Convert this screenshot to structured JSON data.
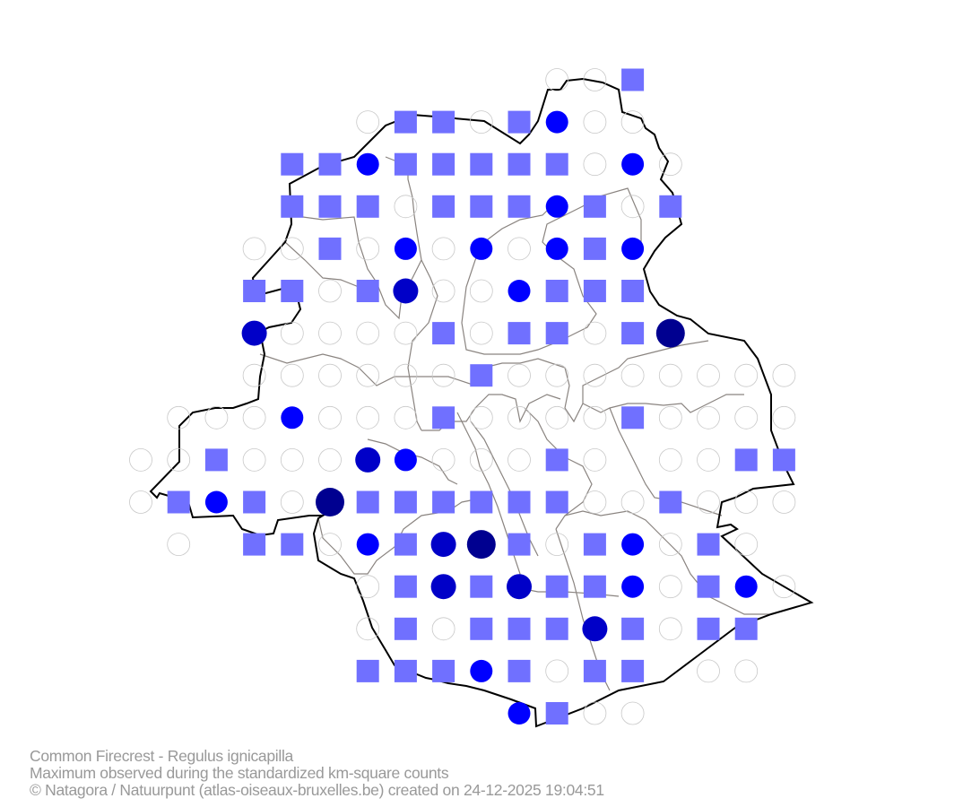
{
  "caption": {
    "species": "Common Firecrest - Regulus ignicapilla",
    "subtitle": "Maximum observed during the standardized km-square counts",
    "credit": "© Natagora / Natuurpunt (atlas-oiseaux-bruxelles.be) created on 24-12-2025 19:04:51"
  },
  "legend_codes": {
    ".": "no square",
    "o": "square surveyed, not observed",
    "s": "observed (lowest category)",
    "a": "circle, blue",
    "b": "circle, medium dark blue",
    "c": "circle, dark blue"
  },
  "colors": {
    "empty_stroke": "#c8c8c8",
    "square": "#7070ff",
    "a": "#0000ff",
    "b": "#0000c8",
    "c": "#000090",
    "border": "#000000",
    "municipal": "#8a8480"
  },
  "grid_rows": [
    "...........oos....",
    "......ossosaoo....",
    "....ssasssssoao...",
    "....sssosssasos...",
    "...oosoaoaoasa....",
    "...ssosbooasss....",
    "...boooosossosc...",
    "...oooooosoooooooo",
    ".oooaooosoooosoooo",
    "oosooobaoooso ooss",
    "osasocssssssoosooo",
    ".o.ssoasbcsosaoso.",
    "......osbsbssaosao",
    "......ososssbsoss.",
    "......sssasoss oo.",
    "..........asoo...."
  ]
}
